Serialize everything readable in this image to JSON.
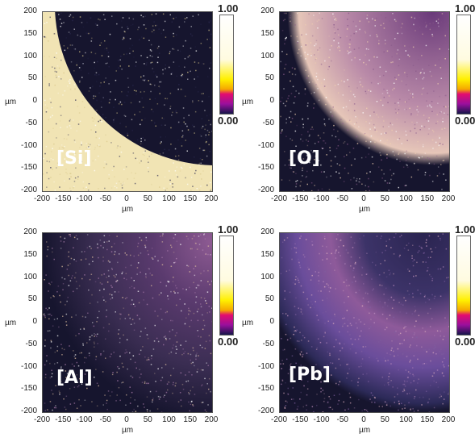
{
  "axis": {
    "y_ticks": [
      "200",
      "150",
      "100",
      "50",
      "0",
      "-50",
      "-100",
      "-150",
      "-200"
    ],
    "x_ticks": [
      "-200",
      "-150",
      "-100",
      "-50",
      "0",
      "50",
      "100",
      "150",
      "200"
    ],
    "unit": "µm"
  },
  "colorbar": {
    "max_label": "1.00",
    "mid_label": "0",
    "min_label": "0.00"
  },
  "panels": [
    {
      "element": "[Si]",
      "colorbar_mid_shown": false,
      "colorbar_x_unit_shown": false
    },
    {
      "element": "[O]",
      "colorbar_mid_shown": true,
      "colorbar_x_unit_shown": true
    },
    {
      "element": "[Al]",
      "colorbar_mid_shown": false,
      "colorbar_x_unit_shown": true
    },
    {
      "element": "[Pb]",
      "colorbar_mid_shown": true,
      "colorbar_x_unit_shown": true
    }
  ],
  "colors": {
    "dark": "#16152e",
    "si_bright": "#f1e4b4",
    "o_bright": "#d8aec2",
    "al_haze": "#8e5b93",
    "pb_haze": "#6a4d9b",
    "colorbar_stops": [
      "#16154a",
      "#9a0f9d",
      "#e30c6e",
      "#f5a800",
      "#fff000",
      "#fffbe0",
      "#ffffff"
    ]
  }
}
